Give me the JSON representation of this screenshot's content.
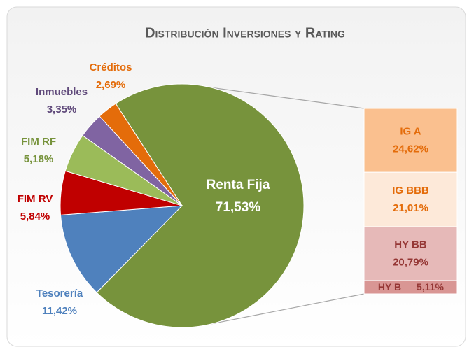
{
  "chart_data": {
    "type": "pie",
    "title": "Distribución Inversiones y Rating",
    "categories": [
      "Renta Fija",
      "Tesorería",
      "FIM RV",
      "FIM RF",
      "Inmuebles",
      "Créditos"
    ],
    "values": [
      71.53,
      11.42,
      5.84,
      5.18,
      3.35,
      2.69
    ],
    "value_labels": [
      "71,53%",
      "11,42%",
      "5,84%",
      "5,18%",
      "3,35%",
      "2,69%"
    ],
    "colors": [
      "#77933c",
      "#4f81bd",
      "#c00000",
      "#9bbb59",
      "#8064a2",
      "#e46c0a"
    ],
    "label_colors": [
      "#ffffff",
      "#4f81bd",
      "#c00000",
      "#77933c",
      "#604a7b",
      "#e46c0a"
    ],
    "breakdown": {
      "type": "bar",
      "categories": [
        "IG A",
        "IG BBB",
        "HY BB",
        "HY B"
      ],
      "values": [
        24.62,
        21.01,
        20.79,
        5.11
      ],
      "value_labels": [
        "24,62%",
        "21,01%",
        "20,79%",
        "5,11%"
      ],
      "colors": [
        "#fac08f",
        "#fde9d9",
        "#e6b9b8",
        "#d99694"
      ],
      "label_colors": [
        "#e46c0a",
        "#e46c0a",
        "#953735",
        "#953735"
      ]
    }
  }
}
